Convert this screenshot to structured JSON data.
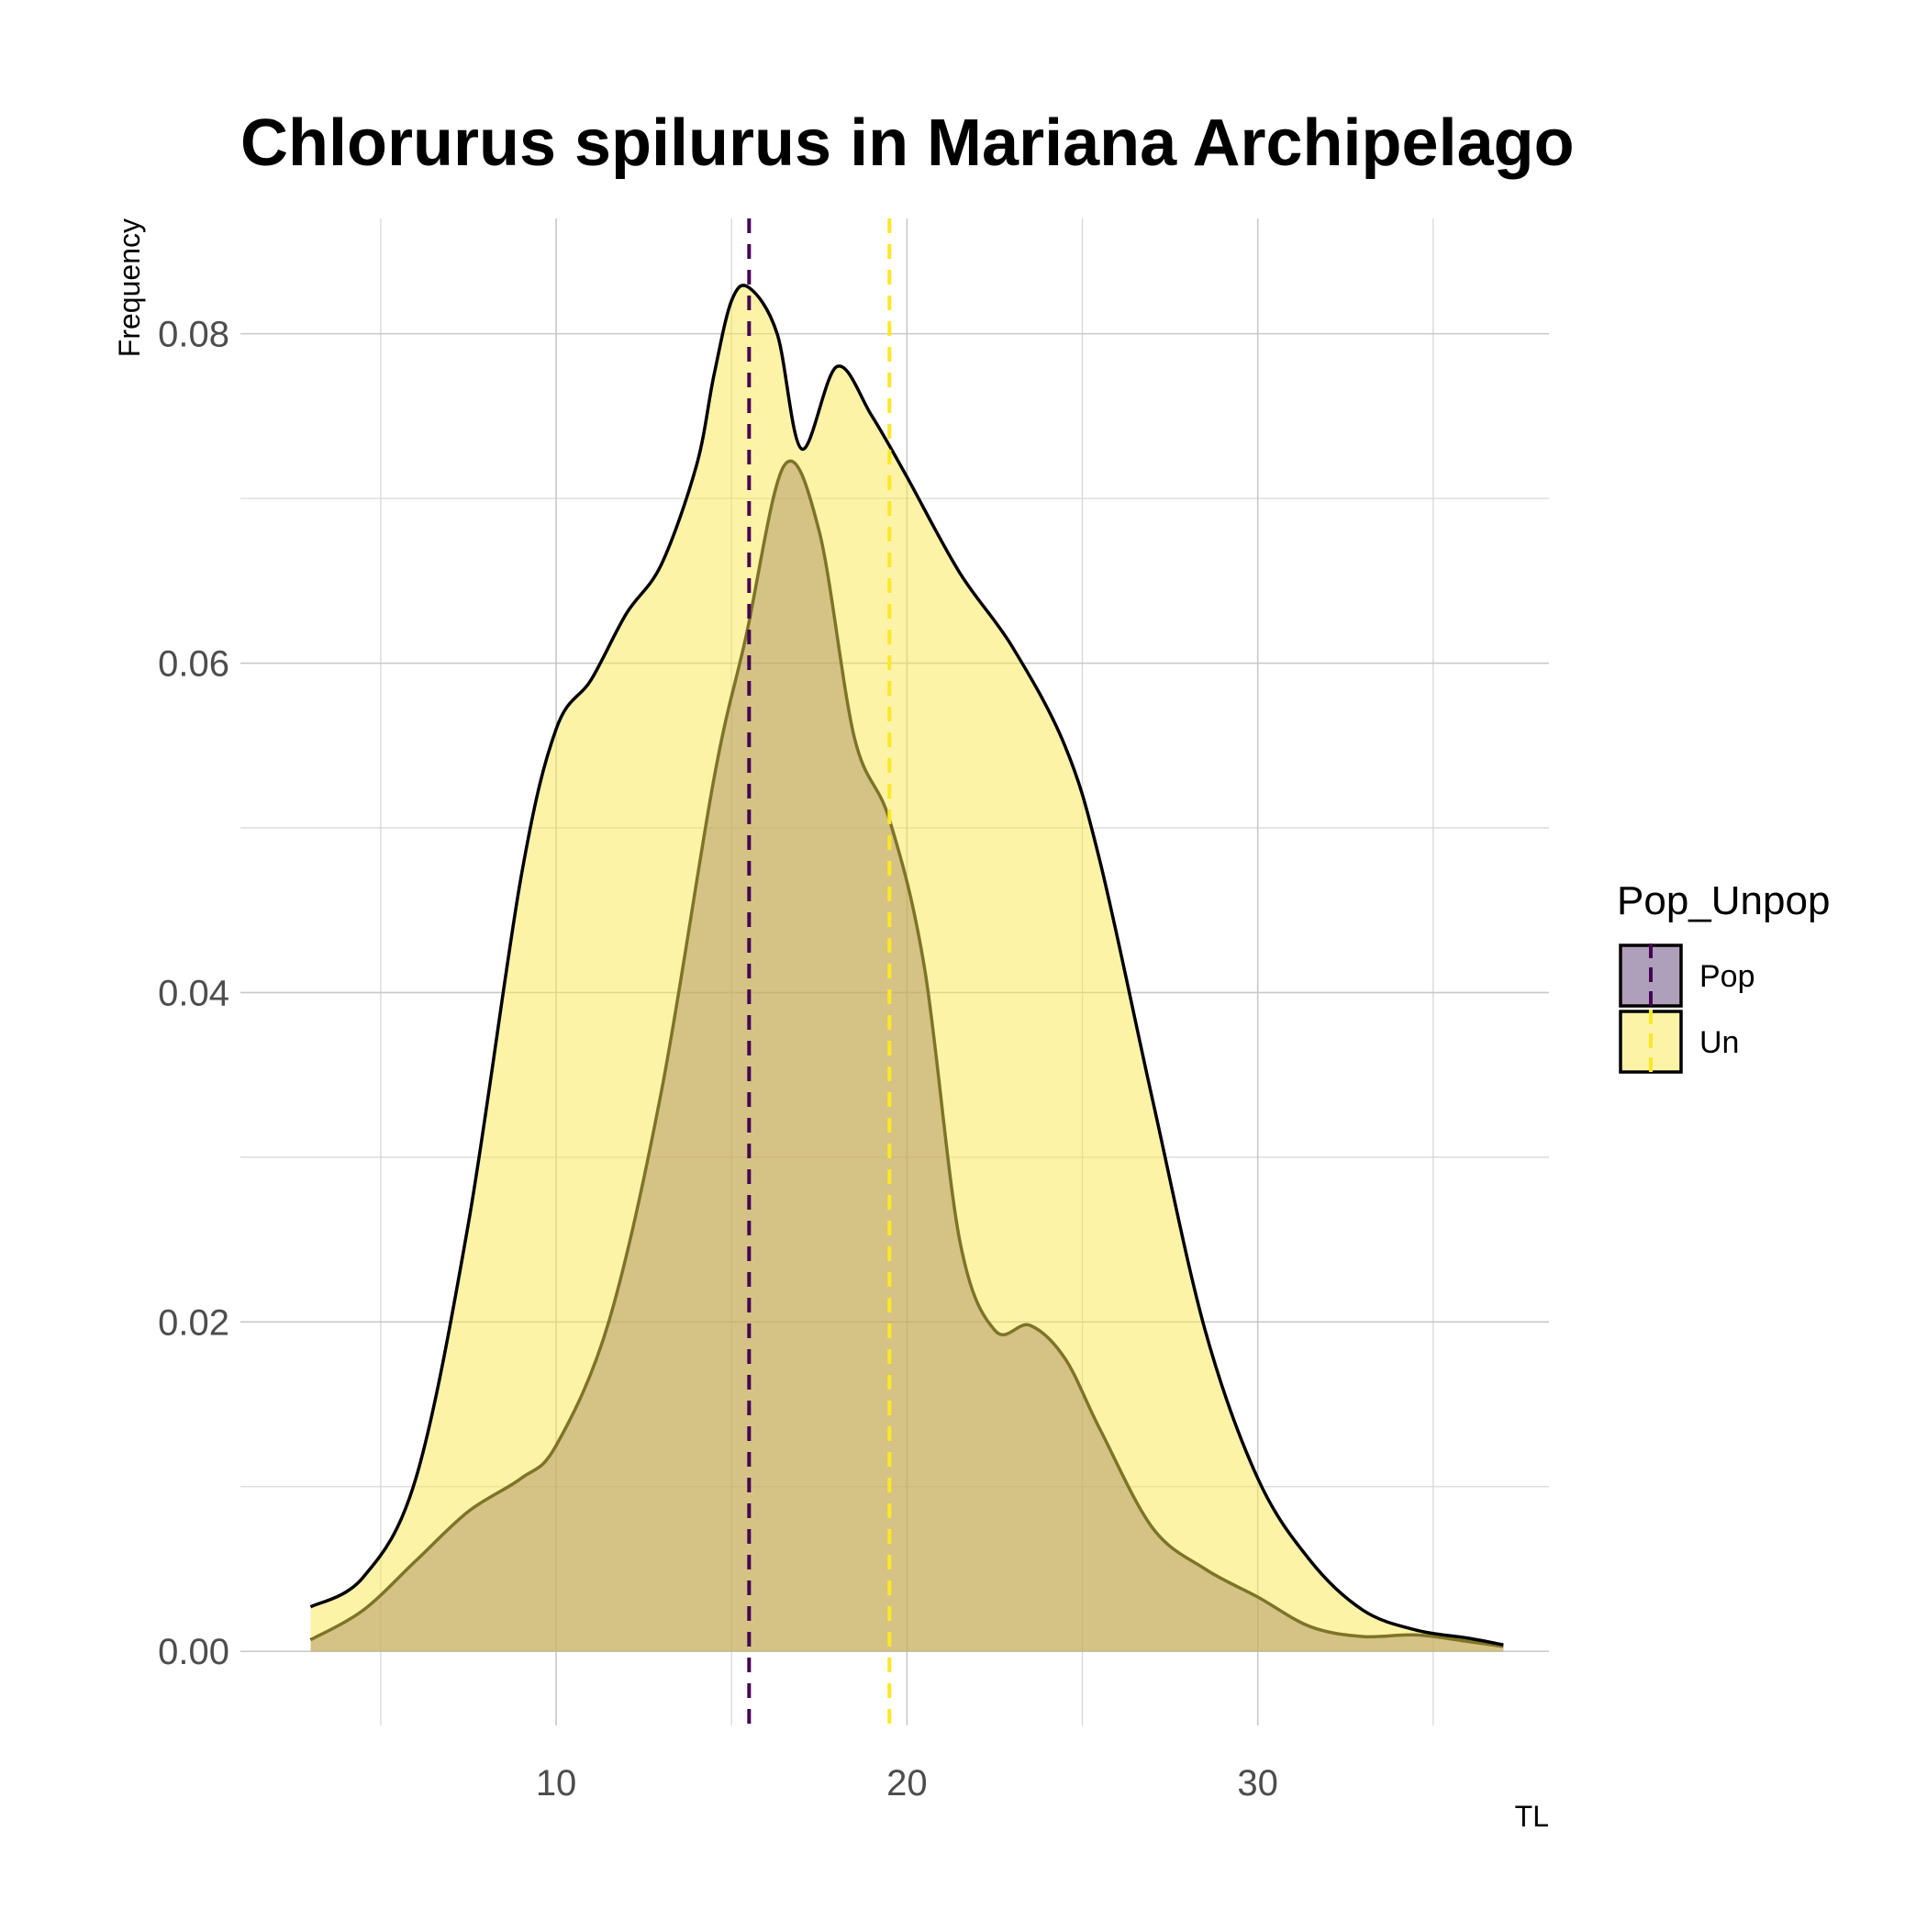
{
  "chart_data": {
    "type": "area",
    "title": "Chlorurus spilurus in Mariana Archipelago",
    "xlabel": "TL",
    "ylabel": "Frequency",
    "xlim": [
      1,
      38.3
    ],
    "ylim": [
      -0.0045,
      0.087
    ],
    "x_ticks": [
      10,
      20,
      30
    ],
    "x_tick_labels": [
      "10",
      "20",
      "30"
    ],
    "x_minor_ticks": [
      5,
      15,
      25,
      35
    ],
    "y_ticks": [
      0.0,
      0.02,
      0.04,
      0.06,
      0.08
    ],
    "y_tick_labels": [
      "0.00",
      "0.02",
      "0.04",
      "0.06",
      "0.08"
    ],
    "y_minor_ticks": [
      0.01,
      0.03,
      0.05,
      0.07
    ],
    "grid": true,
    "legend": {
      "title": "Pop_Unpop",
      "position": "right"
    },
    "series": [
      {
        "name": "Pop",
        "color": "#440154",
        "fill": "#5d3f78",
        "fill_opacity": 0.5,
        "mean": 15.5,
        "x": [
          3.0,
          4.5,
          6.0,
          7.5,
          9.0,
          10.0,
          11.5,
          13.0,
          14.5,
          15.4,
          16.5,
          17.5,
          18.5,
          19.5,
          20.5,
          21.5,
          22.5,
          23.5,
          24.5,
          25.5,
          27.0,
          28.5,
          30.0,
          31.5,
          33.0,
          34.5,
          36.0,
          37.0
        ],
        "y": [
          0.0007,
          0.0025,
          0.0055,
          0.0085,
          0.0105,
          0.0125,
          0.02,
          0.034,
          0.053,
          0.0615,
          0.072,
          0.068,
          0.0555,
          0.0505,
          0.0415,
          0.025,
          0.0195,
          0.0198,
          0.0178,
          0.0135,
          0.0075,
          0.005,
          0.0033,
          0.0015,
          0.0009,
          0.001,
          0.0006,
          0.0003
        ]
      },
      {
        "name": "Un",
        "color": "#fde725",
        "fill": "#fbe850",
        "fill_opacity": 0.5,
        "mean": 19.5,
        "x": [
          3.0,
          4.5,
          6.0,
          7.5,
          9.0,
          10.0,
          11.0,
          12.0,
          13.0,
          14.0,
          14.5,
          15.0,
          15.5,
          16.3,
          17.0,
          18.0,
          19.0,
          20.0,
          21.5,
          23.0,
          24.5,
          25.5,
          27.0,
          28.5,
          30.0,
          31.5,
          33.0,
          34.5,
          36.0,
          37.0
        ],
        "y": [
          0.0027,
          0.0045,
          0.0105,
          0.026,
          0.047,
          0.056,
          0.059,
          0.063,
          0.066,
          0.072,
          0.0775,
          0.082,
          0.0828,
          0.08,
          0.073,
          0.078,
          0.075,
          0.0713,
          0.0655,
          0.061,
          0.055,
          0.048,
          0.0335,
          0.0195,
          0.0105,
          0.0055,
          0.0025,
          0.0013,
          0.0008,
          0.0004
        ]
      }
    ]
  }
}
